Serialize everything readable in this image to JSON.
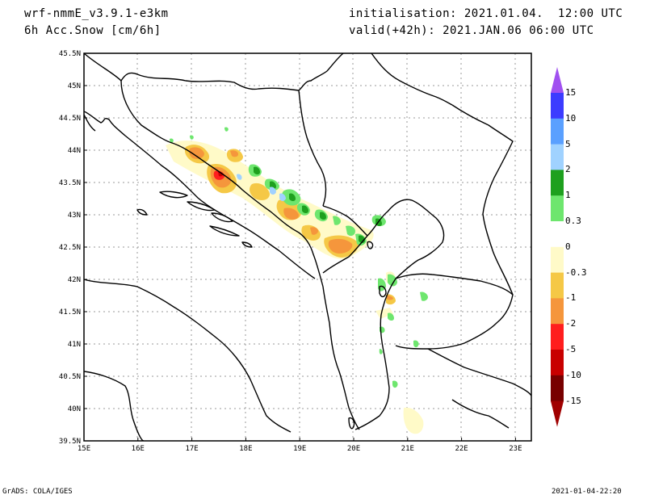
{
  "header": {
    "model": "wrf-nmmE_v3.9.1-e3km",
    "variable": "6h Acc.Snow [cm/6h]",
    "init": "initialisation: 2021.01.04.  12:00 UTC",
    "valid": "valid(+42h): 2021.JAN.06 06:00 UTC"
  },
  "footer": {
    "credit": "GrADS: COLA/IGES",
    "timestamp": "2021-01-04-22:20"
  },
  "axes": {
    "lat_labels": [
      "45.5N",
      "45N",
      "44.5N",
      "44N",
      "43.5N",
      "43N",
      "42.5N",
      "42N",
      "41.5N",
      "41N",
      "40.5N",
      "40N",
      "39.5N"
    ],
    "lon_labels": [
      "15E",
      "16E",
      "17E",
      "18E",
      "19E",
      "20E",
      "21E",
      "22E",
      "23E"
    ]
  },
  "colorbar": {
    "labels": [
      "15",
      "10",
      "5",
      "2",
      "1",
      "0.3",
      "0",
      "-0.3",
      "-1",
      "-2",
      "-5",
      "-10",
      "-15"
    ],
    "colors": [
      "#3c3cff",
      "#5aa0ff",
      "#a0d2ff",
      "#1ea01e",
      "#6ee66e",
      "#ffffff",
      "#fffac8",
      "#f5c846",
      "#f5963c",
      "#ff1e1e",
      "#c80000",
      "#780000"
    ],
    "top_arrow": "#a050f0",
    "bottom_arrow": "#a00000"
  }
}
